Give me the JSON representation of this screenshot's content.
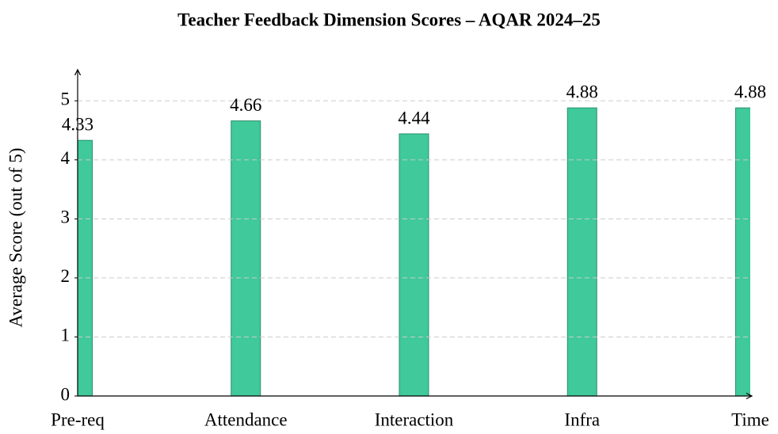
{
  "chart_data": {
    "type": "bar",
    "title": "Teacher Feedback Dimension Scores – AQAR 2024–25",
    "y_label": "Average Score (out of 5)",
    "categories": [
      "Pre-req",
      "Attendance",
      "Interaction",
      "Infra",
      "Time"
    ],
    "values": [
      4.33,
      4.66,
      4.44,
      4.88,
      4.88
    ],
    "color": "#40c99a",
    "ylim": [
      0,
      5.5
    ],
    "yticks": [
      0,
      1,
      2,
      3,
      4,
      5
    ],
    "grid": true
  }
}
